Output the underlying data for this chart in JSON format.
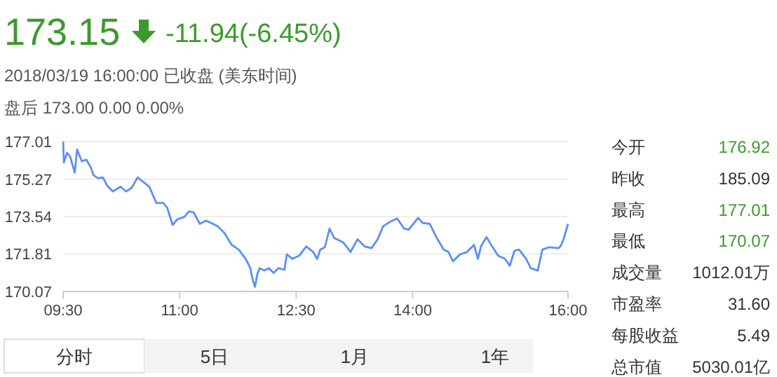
{
  "chart_data": {
    "type": "line",
    "title": "173.15",
    "annotations": [
      "-11.94(-6.45%)",
      "2018/03/19 16:00:00  已收盘 (美东时间)",
      "盘后  173.00  0.00  0.00%",
      "今开",
      "176.92",
      "昨收",
      "185.09",
      "最高",
      "177.01",
      "最低",
      "170.07",
      "成交量",
      "1012.01万",
      "市盈率",
      "31.60",
      "每股收益",
      "5.49",
      "总市值",
      "5030.01亿",
      "分时",
      "5日",
      "1月",
      "1年"
    ],
    "x": [
      9.5,
      9.51,
      9.55,
      9.59,
      9.65,
      9.68,
      9.74,
      9.8,
      9.86,
      9.89,
      9.95,
      10.01,
      10.07,
      10.14,
      10.24,
      10.31,
      10.38,
      10.46,
      10.55,
      10.61,
      10.7,
      10.79,
      10.84,
      10.91,
      10.97,
      11.06,
      11.12,
      11.18,
      11.26,
      11.34,
      11.43,
      11.49,
      11.58,
      11.67,
      11.76,
      11.85,
      11.91,
      11.94,
      11.97,
      12.0,
      12.03,
      12.09,
      12.15,
      12.21,
      12.27,
      12.35,
      12.38,
      12.45,
      12.54,
      12.63,
      12.72,
      12.77,
      12.81,
      12.87,
      12.93,
      12.99,
      13.11,
      13.2,
      13.29,
      13.38,
      13.47,
      13.55,
      13.62,
      13.71,
      13.8,
      13.89,
      13.95,
      14.01,
      14.07,
      14.13,
      14.22,
      14.31,
      14.4,
      14.46,
      14.52,
      14.61,
      14.7,
      14.79,
      14.84,
      14.88,
      14.95,
      15.01,
      15.1,
      15.19,
      15.25,
      15.31,
      15.37,
      15.46,
      15.52,
      15.61,
      15.67,
      15.76,
      15.88,
      15.91,
      15.94,
      16.0
    ],
    "series": [
      {
        "color": "#5b8ff9",
        "values": [
          177.0,
          176.04,
          176.49,
          176.32,
          175.57,
          176.64,
          176.1,
          176.17,
          175.78,
          175.46,
          175.31,
          175.35,
          174.96,
          174.7,
          174.92,
          174.7,
          174.86,
          175.35,
          175.09,
          174.92,
          174.17,
          174.17,
          173.95,
          173.15,
          173.41,
          173.52,
          173.78,
          173.73,
          173.2,
          173.35,
          173.2,
          173.09,
          172.76,
          172.23,
          172.01,
          171.58,
          171.15,
          170.61,
          170.29,
          170.87,
          171.15,
          171.04,
          171.15,
          170.93,
          171.15,
          171.08,
          171.79,
          171.58,
          171.73,
          172.16,
          171.9,
          171.58,
          172.01,
          172.12,
          172.98,
          172.55,
          172.33,
          171.9,
          172.49,
          172.16,
          172.08,
          172.49,
          173.09,
          173.3,
          173.45,
          172.98,
          172.94,
          173.2,
          173.48,
          173.24,
          173.2,
          172.55,
          172.01,
          171.9,
          171.47,
          171.79,
          171.9,
          172.23,
          171.58,
          172.16,
          172.59,
          172.23,
          171.73,
          171.58,
          171.26,
          171.95,
          172.01,
          171.58,
          171.15,
          171.04,
          172.01,
          172.12,
          172.08,
          172.2,
          172.47,
          173.2
        ]
      }
    ],
    "xlim": [
      9.5,
      16
    ],
    "xticks": [
      {
        "value": 9.5,
        "label": "09:30"
      },
      {
        "value": 11,
        "label": "11:00"
      },
      {
        "value": 12.5,
        "label": "12:30"
      },
      {
        "value": 14,
        "label": "14:00"
      },
      {
        "value": 16,
        "label": "16:00"
      }
    ],
    "ylim": [
      170.07,
      177.01
    ],
    "yticks": [
      170.07,
      171.81,
      173.54,
      175.27,
      177.01
    ],
    "grid": "y",
    "marker": "none",
    "line_style": "solid"
  }
}
